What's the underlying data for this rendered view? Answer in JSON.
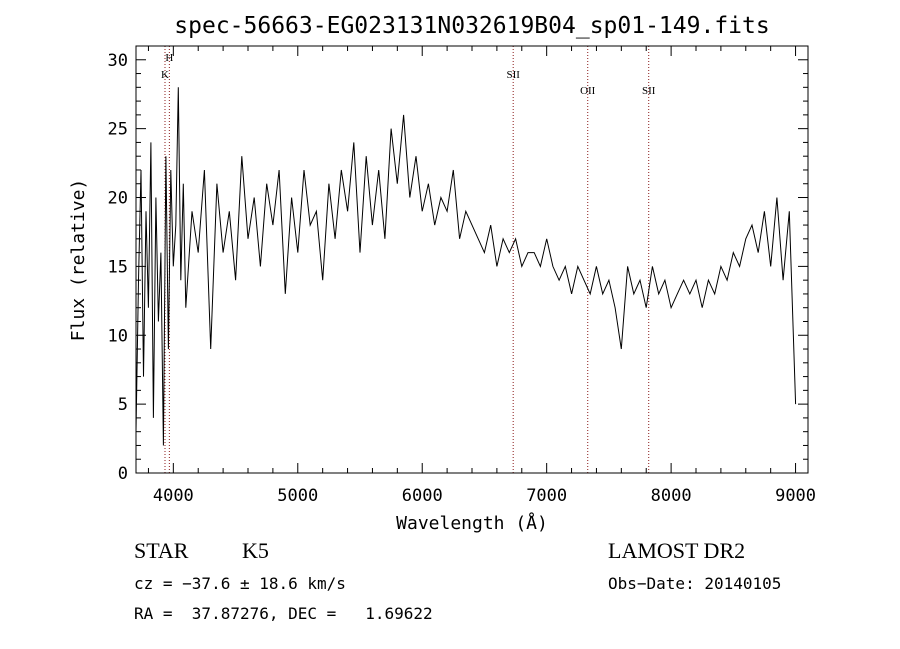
{
  "chart_data": {
    "type": "line",
    "title": "spec-56663-EG023131N032619B04_sp01-149.fits",
    "xlabel": "Wavelength (Å)",
    "ylabel": "Flux (relative)",
    "xlim": [
      3700,
      9100
    ],
    "ylim": [
      0,
      31
    ],
    "xticks": [
      4000,
      5000,
      6000,
      7000,
      8000,
      9000
    ],
    "yticks": [
      0,
      5,
      10,
      15,
      20,
      25,
      30
    ],
    "grid": false,
    "line_color": "#000000",
    "marker_color": "#8b1a1a",
    "x": [
      3700,
      3720,
      3740,
      3760,
      3780,
      3800,
      3820,
      3840,
      3860,
      3880,
      3900,
      3920,
      3940,
      3960,
      3980,
      4000,
      4020,
      4040,
      4060,
      4080,
      4100,
      4150,
      4200,
      4250,
      4300,
      4350,
      4400,
      4450,
      4500,
      4550,
      4600,
      4650,
      4700,
      4750,
      4800,
      4850,
      4900,
      4950,
      5000,
      5050,
      5100,
      5150,
      5200,
      5250,
      5300,
      5350,
      5400,
      5450,
      5500,
      5550,
      5600,
      5650,
      5700,
      5750,
      5800,
      5850,
      5900,
      5950,
      6000,
      6050,
      6100,
      6150,
      6200,
      6250,
      6300,
      6350,
      6400,
      6450,
      6500,
      6550,
      6600,
      6650,
      6700,
      6750,
      6800,
      6850,
      6900,
      6950,
      7000,
      7050,
      7100,
      7150,
      7200,
      7250,
      7300,
      7350,
      7400,
      7450,
      7500,
      7550,
      7600,
      7650,
      7700,
      7750,
      7800,
      7850,
      7900,
      7950,
      8000,
      8050,
      8100,
      8150,
      8200,
      8250,
      8300,
      8350,
      8400,
      8450,
      8500,
      8550,
      8600,
      8650,
      8700,
      8750,
      8800,
      8850,
      8900,
      8950,
      9000
    ],
    "y": [
      3,
      14,
      22,
      7,
      19,
      12,
      24,
      4,
      20,
      11,
      16,
      2,
      23,
      9,
      22,
      15,
      18,
      28,
      14,
      21,
      12,
      19,
      16,
      22,
      9,
      21,
      16,
      19,
      14,
      23,
      17,
      20,
      15,
      21,
      18,
      22,
      13,
      20,
      16,
      22,
      18,
      19,
      14,
      21,
      17,
      22,
      19,
      24,
      16,
      23,
      18,
      22,
      17,
      25,
      21,
      26,
      20,
      23,
      19,
      21,
      18,
      20,
      19,
      22,
      17,
      19,
      18,
      17,
      16,
      18,
      15,
      17,
      16,
      17,
      15,
      16,
      16,
      15,
      17,
      15,
      14,
      15,
      13,
      15,
      14,
      13,
      15,
      13,
      14,
      12,
      9,
      15,
      13,
      14,
      12,
      15,
      13,
      14,
      12,
      13,
      14,
      13,
      14,
      12,
      14,
      13,
      15,
      14,
      16,
      15,
      17,
      18,
      16,
      19,
      15,
      20,
      14,
      19,
      5
    ],
    "lines": [
      {
        "label": "K",
        "x": 3933
      },
      {
        "label": "H",
        "x": 3968
      },
      {
        "label": "SII",
        "x": 6731
      },
      {
        "label": "OII",
        "x": 7330
      },
      {
        "label": "SII",
        "x": 7820
      }
    ]
  },
  "info": {
    "class": "STAR",
    "subclass": "K5",
    "survey": "LAMOST DR2",
    "cz": "cz = −37.6 ± 18.6 km/s",
    "obs_date": "Obs−Date: 20140105",
    "radec": "RA =  37.87276, DEC =   1.69622"
  }
}
